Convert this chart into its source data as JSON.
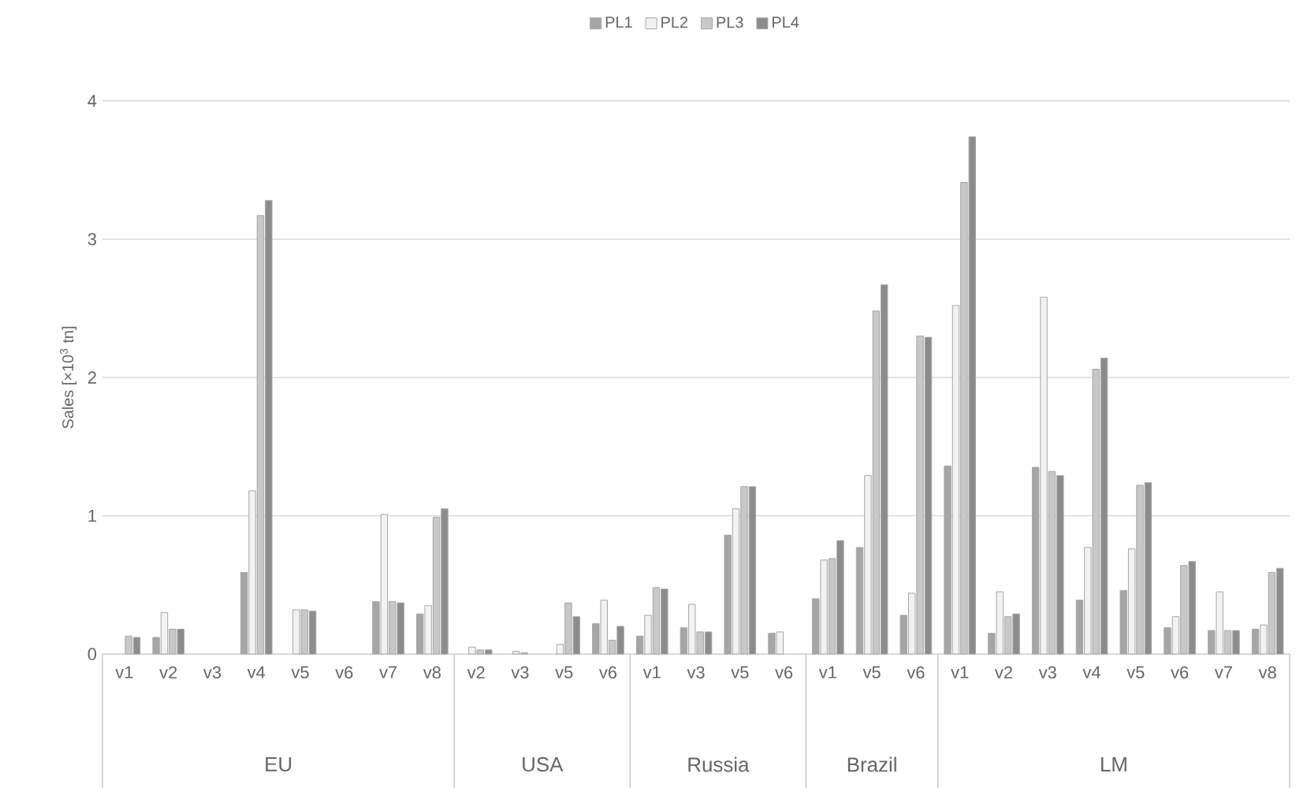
{
  "chart_data": {
    "type": "bar",
    "ylabel": "Sales [×10$^{3}$ tn]",
    "categories": [
      "v1",
      "v2",
      "v3",
      "v4",
      "v5",
      "v6",
      "v7",
      "v8",
      "v2",
      "v3",
      "v5",
      "v6",
      "v1",
      "v3",
      "v5",
      "v6",
      "v1",
      "v5",
      "v6",
      "v1",
      "v2",
      "v3",
      "v4",
      "v5",
      "v6",
      "v7",
      "v8"
    ],
    "annotations": [
      "EU",
      "USA",
      "Russia",
      "Brazil",
      "LM"
    ],
    "series": [
      {
        "name": "PL1",
        "color": "#a6a6a6",
        "values": [
          null,
          0.12,
          null,
          0.59,
          null,
          null,
          0.38,
          0.29,
          null,
          null,
          null,
          0.22,
          0.13,
          0.19,
          0.86,
          0.15,
          0.4,
          0.77,
          0.28,
          1.36,
          0.15,
          1.35,
          0.39,
          0.46,
          0.19,
          0.17,
          0.18
        ]
      },
      {
        "name": "PL2",
        "color": "#f2f2f2",
        "values": [
          null,
          0.3,
          null,
          1.18,
          0.32,
          null,
          1.01,
          0.35,
          0.05,
          0.02,
          0.07,
          0.39,
          0.28,
          0.36,
          1.05,
          0.16,
          0.68,
          1.29,
          0.44,
          2.52,
          0.45,
          2.58,
          0.77,
          0.76,
          0.27,
          0.45,
          0.21
        ]
      },
      {
        "name": "PL3",
        "color": "#c8c8c8",
        "values": [
          0.13,
          0.18,
          null,
          3.17,
          0.32,
          null,
          0.38,
          0.99,
          0.03,
          0.01,
          0.37,
          0.1,
          0.48,
          0.16,
          1.21,
          null,
          0.69,
          2.48,
          2.3,
          3.41,
          0.27,
          1.32,
          2.06,
          1.22,
          0.64,
          0.17,
          0.59
        ]
      },
      {
        "name": "PL4",
        "color": "#8c8c8c",
        "values": [
          0.12,
          0.18,
          null,
          3.28,
          0.31,
          null,
          0.37,
          1.05,
          0.03,
          null,
          0.27,
          0.2,
          0.47,
          0.16,
          1.21,
          null,
          0.82,
          2.67,
          2.29,
          3.74,
          0.29,
          1.29,
          2.14,
          1.24,
          0.67,
          0.17,
          0.62
        ]
      }
    ],
    "ylim": [
      0,
      4
    ],
    "yticks": [
      0,
      1,
      2,
      3,
      4
    ],
    "grid": "y",
    "legend": "top"
  }
}
